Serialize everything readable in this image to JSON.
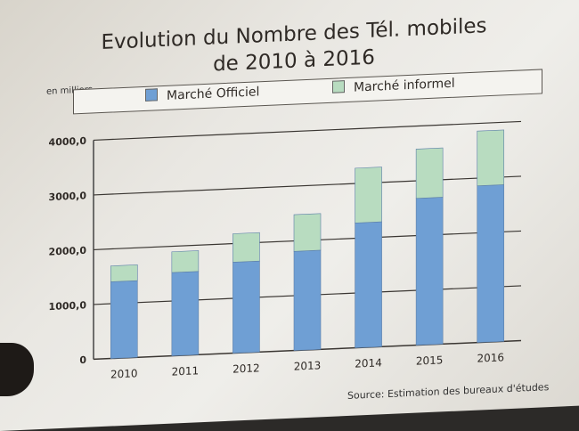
{
  "chart_data": {
    "type": "bar",
    "stacked": true,
    "title": "Evolution du Nombre des Tél. mobiles",
    "subtitle": "de 2010 à 2016",
    "ylabel": "en milliers",
    "categories": [
      "2010",
      "2011",
      "2012",
      "2013",
      "2014",
      "2015",
      "2016"
    ],
    "series": [
      {
        "name": "Marché Officiel",
        "values": [
          1400,
          1520,
          1660,
          1810,
          2280,
          2680,
          2860
        ],
        "color": "#6f9fd4"
      },
      {
        "name": "Marché informel",
        "values": [
          290,
          380,
          520,
          670,
          1000,
          900,
          1000
        ],
        "color": "#b8dcc0"
      }
    ],
    "ylim": [
      0,
      4000
    ],
    "yticks": [
      "0",
      "1000,0",
      "2000,0",
      "3000,0",
      "4000,0"
    ],
    "ytick_values": [
      0,
      1000,
      2000,
      3000,
      4000
    ],
    "grid": true,
    "legend_position": "top",
    "source": "Source: Estimation des bureaux d'études"
  }
}
